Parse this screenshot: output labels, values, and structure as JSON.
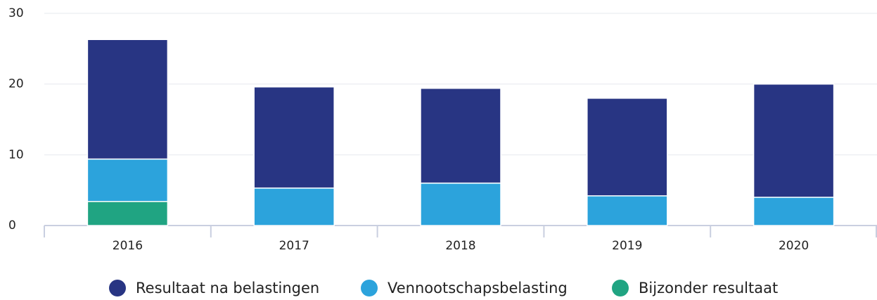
{
  "chart_data": {
    "type": "stacked_bar",
    "categories": [
      "2016",
      "2017",
      "2018",
      "2019",
      "2020"
    ],
    "series": [
      {
        "name": "Resultaat na belastingen",
        "color": "#283583",
        "values": [
          16.9,
          14.3,
          13.4,
          13.8,
          16.0
        ]
      },
      {
        "name": "Vennootschapsbelasting",
        "color": "#2ca3dc",
        "values": [
          6.0,
          5.3,
          6.0,
          4.2,
          4.0
        ]
      },
      {
        "name": "Bijzonder resultaat",
        "color": "#20a482",
        "values": [
          3.4,
          0,
          0,
          0,
          0
        ]
      }
    ],
    "ylim": [
      0,
      30
    ],
    "yticks": [
      0,
      10,
      20,
      30
    ],
    "grid": true,
    "legend": "bottom"
  }
}
